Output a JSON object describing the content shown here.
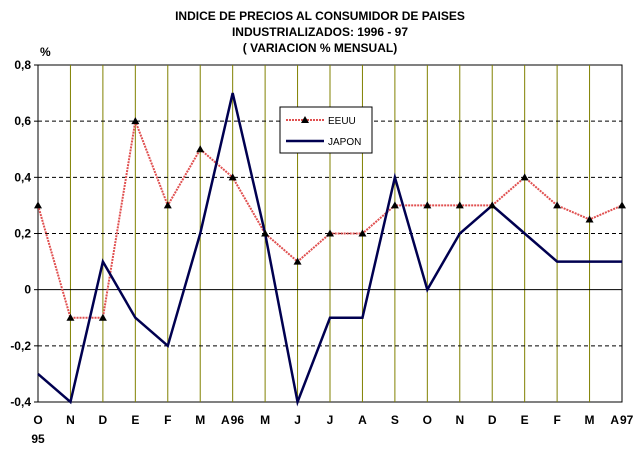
{
  "chart_data": {
    "type": "line",
    "title_lines": [
      "INDICE DE PRECIOS AL CONSUMIDOR DE PAISES",
      "INDUSTRIALIZADOS: 1996 - 97",
      "( VARIACION % MENSUAL)"
    ],
    "ylabel": "%",
    "ylim": [
      -0.4,
      0.8
    ],
    "y_ticks": [
      -0.4,
      -0.2,
      0,
      0.2,
      0.4,
      0.6,
      0.8
    ],
    "y_tick_labels": [
      "-0,4",
      "-0,2",
      "0",
      "0,2",
      "0,4",
      "0,6",
      "0,8"
    ],
    "categories": [
      "O",
      "N",
      "D",
      "E",
      "F",
      "M",
      "A",
      "M",
      "J",
      "J",
      "A",
      "S",
      "O",
      "N",
      "D",
      "E",
      "F",
      "M",
      "A"
    ],
    "year_marks": [
      {
        "index": 0,
        "label": "95"
      },
      {
        "index": 6,
        "label": "96"
      },
      {
        "index": 18,
        "label": "97"
      }
    ],
    "grid": true,
    "legend_position": "top-center",
    "series": [
      {
        "name": "EEUU",
        "color": "#e05050",
        "marker": "triangle",
        "values": [
          0.3,
          -0.1,
          -0.1,
          0.6,
          0.3,
          0.5,
          0.4,
          0.2,
          0.1,
          0.2,
          0.2,
          0.3,
          0.3,
          0.3,
          0.3,
          0.4,
          0.3,
          0.25,
          0.3
        ]
      },
      {
        "name": "JAPON",
        "color": "#000050",
        "marker": "none",
        "values": [
          -0.3,
          -0.4,
          0.1,
          -0.1,
          -0.2,
          0.2,
          0.7,
          0.2,
          -0.4,
          -0.1,
          -0.1,
          0.4,
          0.0,
          0.2,
          0.3,
          0.2,
          0.1,
          0.1,
          0.1
        ]
      }
    ]
  }
}
